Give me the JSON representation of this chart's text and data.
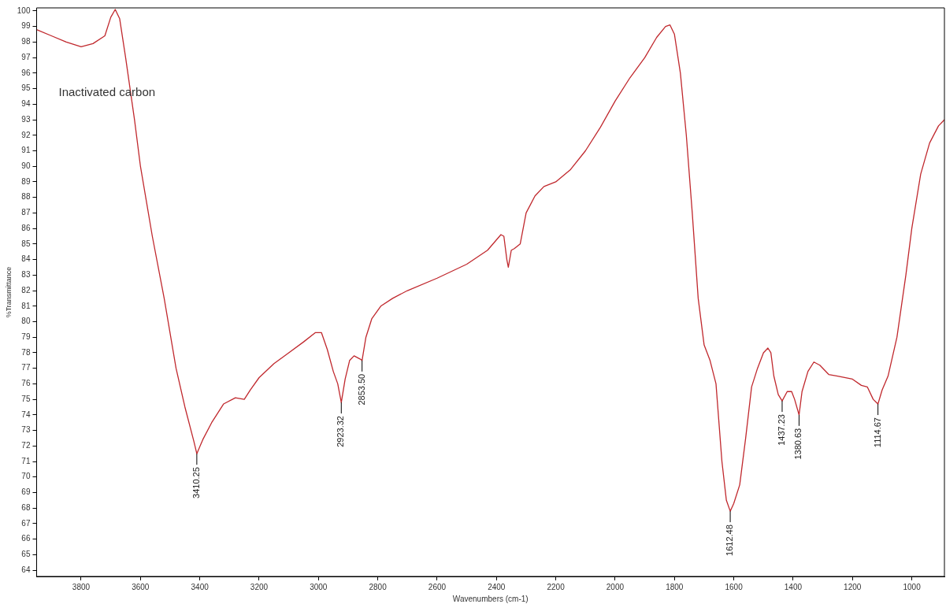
{
  "chart_data": {
    "type": "line",
    "xlabel": "Wavenumbers (cm-1)",
    "ylabel": "%Transmittance",
    "xlim": [
      3950,
      890
    ],
    "xticks": [
      3800,
      3600,
      3400,
      3200,
      3000,
      2800,
      2600,
      2400,
      2200,
      2000,
      1800,
      1600,
      1400,
      1200,
      1000
    ],
    "ylim": [
      63.6,
      100.2
    ],
    "yticks": [
      64,
      65,
      66,
      67,
      68,
      69,
      70,
      71,
      72,
      73,
      74,
      75,
      76,
      77,
      78,
      79,
      80,
      81,
      82,
      83,
      84,
      85,
      86,
      87,
      88,
      89,
      90,
      91,
      92,
      93,
      94,
      95,
      96,
      97,
      98,
      99,
      100
    ],
    "grid": false,
    "legend": false,
    "marker": "none",
    "line_style": "solid",
    "series": [
      {
        "color": "#c0282d",
        "x": [
          3950,
          3900,
          3850,
          3800,
          3760,
          3720,
          3700,
          3685,
          3670,
          3650,
          3620,
          3600,
          3560,
          3520,
          3480,
          3450,
          3420,
          3410,
          3390,
          3360,
          3320,
          3280,
          3250,
          3230,
          3200,
          3150,
          3100,
          3050,
          3010,
          2990,
          2970,
          2950,
          2935,
          2923,
          2910,
          2895,
          2880,
          2860,
          2853,
          2840,
          2820,
          2790,
          2750,
          2700,
          2600,
          2500,
          2430,
          2385,
          2375,
          2365,
          2360,
          2350,
          2340,
          2320,
          2300,
          2270,
          2240,
          2200,
          2150,
          2100,
          2050,
          2000,
          1950,
          1900,
          1860,
          1830,
          1815,
          1800,
          1780,
          1760,
          1740,
          1720,
          1700,
          1680,
          1660,
          1640,
          1625,
          1612,
          1600,
          1580,
          1560,
          1540,
          1520,
          1500,
          1485,
          1475,
          1465,
          1450,
          1437,
          1420,
          1405,
          1395,
          1380,
          1370,
          1350,
          1330,
          1310,
          1280,
          1250,
          1200,
          1170,
          1150,
          1130,
          1114,
          1100,
          1080,
          1050,
          1020,
          1000,
          970,
          940,
          910,
          890
        ],
        "values": [
          98.8,
          98.4,
          98.0,
          97.7,
          97.9,
          98.4,
          99.6,
          100.1,
          99.5,
          97.0,
          93,
          90,
          85.5,
          81.5,
          77,
          74.5,
          72.3,
          71.5,
          72.4,
          73.5,
          74.7,
          75.1,
          75.0,
          75.6,
          76.4,
          77.3,
          78.0,
          78.7,
          79.3,
          79.3,
          78.2,
          76.8,
          76.0,
          74.8,
          76.3,
          77.5,
          77.8,
          77.6,
          77.5,
          79.0,
          80.2,
          81.0,
          81.5,
          82.0,
          82.8,
          83.7,
          84.6,
          85.6,
          85.5,
          84.0,
          83.5,
          84.6,
          84.7,
          85.0,
          87.0,
          88.1,
          88.7,
          89.0,
          89.8,
          91.0,
          92.5,
          94.2,
          95.7,
          97.0,
          98.3,
          99.0,
          99.1,
          98.5,
          96.0,
          92,
          87,
          81.5,
          78.5,
          77.5,
          76,
          71,
          68.5,
          67.8,
          68.3,
          69.5,
          72.5,
          75.8,
          77.0,
          78.0,
          78.3,
          78.0,
          76.5,
          75.3,
          74.9,
          75.5,
          75.5,
          75.0,
          74.0,
          75.5,
          76.8,
          77.4,
          77.2,
          76.6,
          76.5,
          76.3,
          75.9,
          75.8,
          75.0,
          74.7,
          75.6,
          76.5,
          79,
          83,
          86,
          89.5,
          91.5,
          92.6,
          93.0
        ]
      }
    ],
    "annotations": [
      "Inactivated carbon",
      {
        "text": "3410.25",
        "x": 3410,
        "y": 71.5
      },
      {
        "text": "2923.32",
        "x": 2923,
        "y": 74.8
      },
      {
        "text": "2853.50",
        "x": 2853,
        "y": 77.5
      },
      {
        "text": "1612.48",
        "x": 1612,
        "y": 67.8
      },
      {
        "text": "1437.23",
        "x": 1437,
        "y": 74.9
      },
      {
        "text": "1380.63",
        "x": 1380,
        "y": 74.0
      },
      {
        "text": "1114.67",
        "x": 1114,
        "y": 74.7
      }
    ]
  }
}
